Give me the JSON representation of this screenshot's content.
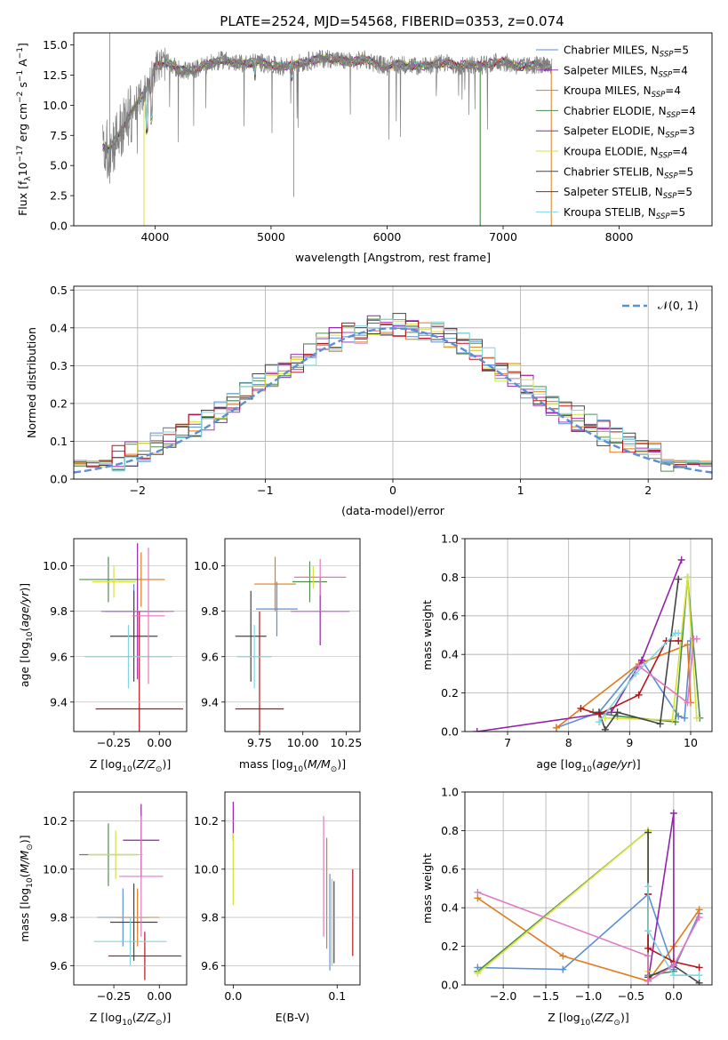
{
  "figure": {
    "title": "PLATE=2524, MJD=54568, FIBERID=0353, z=0.074"
  },
  "chart_data": [
    {
      "id": "spectrum",
      "type": "line",
      "xlabel": "wavelength [Angstrom, rest frame]",
      "ylabel": "Flux [f_λ 10^-17 erg cm^-2 s^-1 A^-1]",
      "xlim": [
        3300,
        8800
      ],
      "ylim": [
        0,
        16
      ],
      "xticks": [
        4000,
        5000,
        6000,
        7000,
        8000
      ],
      "yticks": [
        0.0,
        2.5,
        5.0,
        7.5,
        10.0,
        12.5,
        15.0
      ],
      "legend_position": "right",
      "data_series": {
        "name": "",
        "x": [
          3550,
          3600,
          3650,
          3700,
          3750,
          3800,
          3850,
          3900,
          3950,
          4000,
          4100,
          4200,
          4300,
          4400,
          4500,
          4600,
          4700,
          4800,
          4900,
          5000,
          5100,
          5200,
          5300,
          5400,
          5500,
          5600,
          5700,
          5800,
          5900,
          6000,
          6100,
          6200,
          6300,
          6400,
          6500,
          6600,
          6700,
          6800,
          6900,
          7000,
          7100,
          7200,
          7300,
          7400
        ],
        "y": [
          6.5,
          6.3,
          7.0,
          7.8,
          8.5,
          9.5,
          10.2,
          11.0,
          11.8,
          13.2,
          13.5,
          13.0,
          12.8,
          13.2,
          13.5,
          13.8,
          13.4,
          13.5,
          13.6,
          13.3,
          13.2,
          13.4,
          13.6,
          13.8,
          13.9,
          13.7,
          13.6,
          13.8,
          13.5,
          13.2,
          13.4,
          13.3,
          13.2,
          13.4,
          13.5,
          13.3,
          13.4,
          13.3,
          13.5,
          13.6,
          13.3,
          13.2,
          13.4,
          13.1
        ]
      },
      "model_series": [
        {
          "name": "Chabrier MILES, N_SSP=5",
          "legend": "Chabrier MILES, N",
          "n": "=5",
          "color": "#5b8fd4"
        },
        {
          "name": "Salpeter MILES, N_SSP=4",
          "legend": "Salpeter MILES, N",
          "n": "=4",
          "color": "#9f3fbd"
        },
        {
          "name": "Kroupa MILES, N_SSP=4",
          "legend": "Kroupa MILES, N",
          "n": "=4",
          "color": "#e07b1a"
        },
        {
          "name": "Chabrier ELODIE, N_SSP=4",
          "legend": "Chabrier ELODIE, N",
          "n": "=4",
          "color": "#4f8d4f"
        },
        {
          "name": "Salpeter ELODIE, N_SSP=3",
          "legend": "Salpeter ELODIE, N",
          "n": "=3",
          "color": "#9322a8"
        },
        {
          "name": "Kroupa ELODIE, N_SSP=4",
          "legend": "Kroupa ELODIE, N",
          "n": "=4",
          "color": "#d6e23a"
        },
        {
          "name": "Chabrier STELIB, N_SSP=5",
          "legend": "Chabrier STELIB, N",
          "n": "=5",
          "color": "#444444"
        },
        {
          "name": "Salpeter STELIB, N_SSP=5",
          "legend": "Salpeter STELIB, N",
          "n": "=5",
          "color": "#b5141c"
        },
        {
          "name": "Kroupa STELIB, N_SSP=5",
          "legend": "Kroupa STELIB, N",
          "n": "=5",
          "color": "#7fd6e3"
        }
      ],
      "legend_subscript": "SSP"
    },
    {
      "id": "residuals",
      "type": "histogram",
      "xlabel": "(data-model)/error",
      "ylabel": "Normed distribution",
      "xlim": [
        -2.5,
        2.5
      ],
      "ylim": [
        0,
        0.51
      ],
      "xticks": [
        -2,
        -1,
        0,
        1,
        2
      ],
      "xtick_labels": [
        "−2",
        "−1",
        "0",
        "1",
        "2"
      ],
      "yticks": [
        0.0,
        0.1,
        0.2,
        0.3,
        0.4,
        0.5
      ],
      "grid": true,
      "legend_position": "top-right",
      "gaussian_label": "𝒩(0, 1)",
      "bin_width": 0.1,
      "hist_colors": [
        "#5b8fd4",
        "#9f3fbd",
        "#e07b1a",
        "#4f8d4f",
        "#9322a8",
        "#d6e23a",
        "#444444",
        "#b5141c",
        "#7fd6e3"
      ]
    },
    {
      "id": "age-vs-Z",
      "type": "errorbar",
      "xlabel": "Z [log10(Z/Z_sun)]",
      "ylabel": "age [log10(age/yr)]",
      "xlim": [
        -0.47,
        0.15
      ],
      "ylim": [
        9.27,
        10.12
      ],
      "xticks": [
        -0.25,
        0.0
      ],
      "xtick_labels": [
        "−0.25",
        "0.00"
      ],
      "yticks": [
        9.4,
        9.6,
        9.8,
        10.0
      ],
      "points": [
        {
          "x": -0.14,
          "y": 9.8,
          "xe": 0.16,
          "ye": 0.12,
          "color": "#5b8fd4"
        },
        {
          "x": -0.1,
          "y": 9.94,
          "xe": 0.13,
          "ye": 0.12,
          "color": "#e07b1a"
        },
        {
          "x": -0.12,
          "y": 9.8,
          "xe": 0.2,
          "ye": 0.3,
          "color": "#9322a8"
        },
        {
          "x": -0.28,
          "y": 9.94,
          "xe": 0.16,
          "ye": 0.1,
          "color": "#4f8d4f"
        },
        {
          "x": -0.25,
          "y": 9.93,
          "xe": 0.12,
          "ye": 0.07,
          "color": "#d6e23a"
        },
        {
          "x": -0.14,
          "y": 9.69,
          "xe": 0.13,
          "ye": 0.2,
          "color": "#444444"
        },
        {
          "x": -0.11,
          "y": 9.37,
          "xe": 0.24,
          "ye": 0.43,
          "color": "#b5141c"
        },
        {
          "x": -0.17,
          "y": 9.6,
          "xe": 0.24,
          "ye": 0.14,
          "color": "#7fd6e3"
        },
        {
          "x": -0.06,
          "y": 9.78,
          "xe": 0.09,
          "ye": 0.3,
          "color": "#e377c2"
        }
      ]
    },
    {
      "id": "age-vs-mass",
      "type": "errorbar",
      "xlabel": "mass [log10(M/M_sun)]",
      "ylabel": "",
      "xlim": [
        9.55,
        10.33
      ],
      "ylim": [
        9.27,
        10.12
      ],
      "xticks": [
        9.75,
        10.0,
        10.25
      ],
      "xtick_labels": [
        "9.75",
        "10.00",
        "10.25"
      ],
      "yticks": [
        9.4,
        9.6,
        9.8,
        10.0
      ],
      "points": [
        {
          "x": 9.85,
          "y": 9.81,
          "xe": 0.12,
          "ye": 0.12,
          "color": "#5b8fd4"
        },
        {
          "x": 9.84,
          "y": 9.92,
          "xe": 0.12,
          "ye": 0.12,
          "color": "#e07b1a"
        },
        {
          "x": 10.1,
          "y": 9.8,
          "xe": 0.17,
          "ye": 0.15,
          "color": "#9322a8"
        },
        {
          "x": 10.04,
          "y": 9.93,
          "xe": 0.1,
          "ye": 0.09,
          "color": "#4f8d4f"
        },
        {
          "x": 10.06,
          "y": 9.95,
          "xe": 0.08,
          "ye": 0.05,
          "color": "#d6e23a"
        },
        {
          "x": 9.7,
          "y": 9.69,
          "xe": 0.09,
          "ye": 0.2,
          "color": "#444444"
        },
        {
          "x": 9.75,
          "y": 9.37,
          "xe": 0.14,
          "ye": 0.43,
          "color": "#b5141c"
        },
        {
          "x": 9.72,
          "y": 9.6,
          "xe": 0.1,
          "ye": 0.14,
          "color": "#7fd6e3"
        },
        {
          "x": 10.1,
          "y": 9.95,
          "xe": 0.15,
          "ye": 0.08,
          "color": "#e377c2"
        }
      ]
    },
    {
      "id": "weight-vs-age",
      "type": "line",
      "xlabel": "age [log10(age/yr)]",
      "ylabel": "mass weight",
      "xlim": [
        6.3,
        10.35
      ],
      "ylim": [
        0,
        1.0
      ],
      "xticks": [
        7,
        8,
        9,
        10
      ],
      "yticks": [
        0.0,
        0.2,
        0.4,
        0.6,
        0.8,
        1.0
      ],
      "grid": true,
      "series": [
        {
          "color": "#5b8fd4",
          "x": [
            7.8,
            8.5,
            9.2,
            9.8,
            9.9,
            10.0
          ],
          "y": [
            0.02,
            0.1,
            0.37,
            0.08,
            0.07,
            0.47
          ]
        },
        {
          "color": "#e07b1a",
          "x": [
            7.8,
            9.15,
            9.95,
            10.0
          ],
          "y": [
            0.02,
            0.35,
            0.45,
            0.15
          ]
        },
        {
          "color": "#9322a8",
          "x": [
            6.5,
            8.7,
            9.2,
            9.85
          ],
          "y": [
            0.0,
            0.1,
            0.37,
            0.89
          ]
        },
        {
          "color": "#4f8d4f",
          "x": [
            8.4,
            8.8,
            9.75,
            9.95,
            10.15
          ],
          "y": [
            0.1,
            0.08,
            0.05,
            0.8,
            0.07
          ]
        },
        {
          "color": "#d6e23a",
          "x": [
            8.6,
            9.7,
            9.95,
            10.1
          ],
          "y": [
            0.07,
            0.06,
            0.8,
            0.07
          ]
        },
        {
          "color": "#444444",
          "x": [
            8.5,
            8.6,
            8.8,
            9.5,
            9.8
          ],
          "y": [
            0.1,
            0.01,
            0.1,
            0.04,
            0.79
          ]
        },
        {
          "color": "#b5141c",
          "x": [
            8.2,
            8.5,
            9.15,
            9.6,
            9.8
          ],
          "y": [
            0.12,
            0.09,
            0.19,
            0.47,
            0.47
          ]
        },
        {
          "color": "#7fd6e3",
          "x": [
            8.5,
            9.1,
            9.75,
            9.8
          ],
          "y": [
            0.05,
            0.3,
            0.51,
            0.51
          ]
        },
        {
          "color": "#e377c2",
          "x": [
            9.15,
            9.95,
            10.05,
            10.1
          ],
          "y": [
            0.34,
            0.15,
            0.48,
            0.48
          ]
        }
      ]
    },
    {
      "id": "mass-vs-Z",
      "type": "errorbar",
      "xlabel": "Z [log10(Z/Z_sun)]",
      "ylabel": "mass [log10(M/M_sun)]",
      "xlim": [
        -0.47,
        0.15
      ],
      "ylim": [
        9.52,
        10.32
      ],
      "xticks": [
        -0.25,
        0.0
      ],
      "xtick_labels": [
        "−0.25",
        "0.00"
      ],
      "yticks": [
        9.6,
        9.8,
        10.0,
        10.2
      ],
      "points": [
        {
          "x": -0.2,
          "y": 9.8,
          "xe": 0.14,
          "ye": 0.12,
          "color": "#5b8fd4"
        },
        {
          "x": -0.12,
          "y": 9.8,
          "xe": 0.12,
          "ye": 0.12,
          "color": "#e07b1a"
        },
        {
          "x": -0.1,
          "y": 10.12,
          "xe": 0.1,
          "ye": 0.15,
          "color": "#9322a8"
        },
        {
          "x": -0.28,
          "y": 10.06,
          "xe": 0.16,
          "ye": 0.13,
          "color": "#4f8d4f"
        },
        {
          "x": -0.24,
          "y": 10.06,
          "xe": 0.15,
          "ye": 0.1,
          "color": "#d6e23a"
        },
        {
          "x": -0.14,
          "y": 9.78,
          "xe": 0.13,
          "ye": 0.16,
          "color": "#444444"
        },
        {
          "x": -0.08,
          "y": 9.64,
          "xe": 0.2,
          "ye": 0.1,
          "color": "#b5141c"
        },
        {
          "x": -0.16,
          "y": 9.7,
          "xe": 0.2,
          "ye": 0.1,
          "color": "#7fd6e3"
        },
        {
          "x": -0.1,
          "y": 9.97,
          "xe": 0.12,
          "ye": 0.25,
          "color": "#e377c2"
        }
      ]
    },
    {
      "id": "mass-vs-ebv",
      "type": "errorbar",
      "xlabel": "E(B-V)",
      "ylabel": "",
      "xlim": [
        -0.008,
        0.122
      ],
      "ylim": [
        9.52,
        10.32
      ],
      "xticks": [
        0.0,
        0.1
      ],
      "xtick_labels": [
        "0.0",
        "0.1"
      ],
      "yticks": [
        9.6,
        9.8,
        10.0,
        10.2
      ],
      "points": [
        {
          "x": 0.0,
          "y": 10.2,
          "xe": 0,
          "ye": 0.08,
          "color": "#9322a8"
        },
        {
          "x": 0.0,
          "y": 10.0,
          "xe": 0,
          "ye": 0.15,
          "color": "#d6e23a"
        },
        {
          "x": 0.087,
          "y": 9.97,
          "xe": 0,
          "ye": 0.25,
          "color": "#e377c2"
        },
        {
          "x": 0.09,
          "y": 9.9,
          "xe": 0,
          "ye": 0.23,
          "color": "#e07b1a"
        },
        {
          "x": 0.093,
          "y": 9.78,
          "xe": 0,
          "ye": 0.2,
          "color": "#5b8fd4"
        },
        {
          "x": 0.095,
          "y": 9.78,
          "xe": 0,
          "ye": 0.18,
          "color": "#7fd6e3"
        },
        {
          "x": 0.097,
          "y": 9.78,
          "xe": 0,
          "ye": 0.17,
          "color": "#444444"
        },
        {
          "x": 0.115,
          "y": 9.82,
          "xe": 0,
          "ye": 0.18,
          "color": "#b5141c"
        }
      ]
    },
    {
      "id": "weight-vs-Z",
      "type": "line",
      "xlabel": "Z [log10(Z/Z_sun)]",
      "ylabel": "mass weight",
      "xlim": [
        -2.45,
        0.45
      ],
      "ylim": [
        0,
        1.0
      ],
      "xticks": [
        -2.0,
        -1.5,
        -1.0,
        -0.5,
        0.0
      ],
      "xtick_labels": [
        "−2.0",
        "−1.5",
        "−1.0",
        "−0.5",
        "0.0"
      ],
      "yticks": [
        0.0,
        0.2,
        0.4,
        0.6,
        0.8,
        1.0
      ],
      "grid": true,
      "series": [
        {
          "color": "#5b8fd4",
          "x": [
            -2.3,
            -1.3,
            -0.3,
            0.0,
            0.3
          ],
          "y": [
            0.09,
            0.08,
            0.47,
            0.08,
            0.37
          ]
        },
        {
          "color": "#e07b1a",
          "x": [
            -2.3,
            -1.3,
            -0.3,
            0.0,
            0.3
          ],
          "y": [
            0.45,
            0.15,
            0.02,
            0.2,
            0.39
          ]
        },
        {
          "color": "#9322a8",
          "x": [
            -0.3,
            0.0,
            0.0
          ],
          "y": [
            0.02,
            0.89,
            0.1
          ]
        },
        {
          "color": "#4f8d4f",
          "x": [
            -2.3,
            -0.3,
            -0.3,
            0.0
          ],
          "y": [
            0.07,
            0.8,
            0.05,
            0.07
          ]
        },
        {
          "color": "#d6e23a",
          "x": [
            -2.3,
            -0.3,
            -0.3
          ],
          "y": [
            0.06,
            0.8,
            0.07
          ]
        },
        {
          "color": "#444444",
          "x": [
            -0.3,
            -0.3,
            0.0,
            0.3
          ],
          "y": [
            0.79,
            0.04,
            0.1,
            0.01
          ]
        },
        {
          "color": "#b5141c",
          "x": [
            -0.3,
            -0.3,
            0.0,
            0.3
          ],
          "y": [
            0.47,
            0.19,
            0.12,
            0.09
          ]
        },
        {
          "color": "#7fd6e3",
          "x": [
            -0.3,
            -0.3,
            0.0,
            0.3
          ],
          "y": [
            0.51,
            0.28,
            0.05,
            0.05
          ]
        },
        {
          "color": "#e377c2",
          "x": [
            -2.3,
            -0.3,
            -0.3,
            0.0,
            0.3
          ],
          "y": [
            0.48,
            0.15,
            0.02,
            0.1,
            0.35
          ]
        }
      ]
    }
  ]
}
